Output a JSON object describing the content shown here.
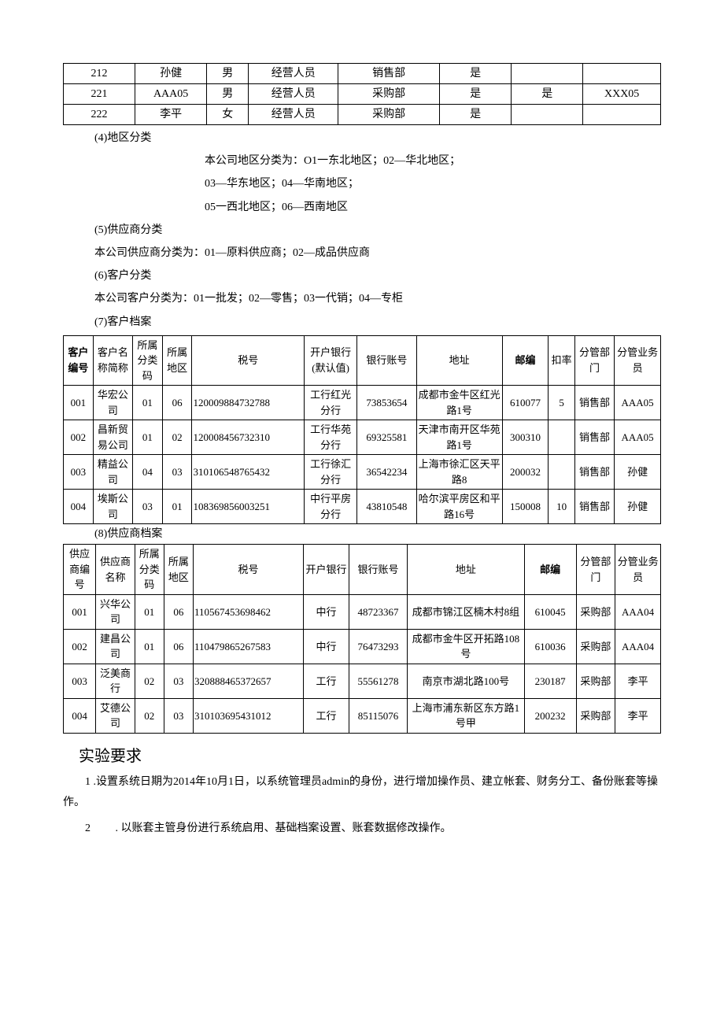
{
  "table1": {
    "rows": [
      {
        "code": "212",
        "name": "孙健",
        "gender": "男",
        "role": "经营人员",
        "dept": "销售部",
        "col6": "是",
        "col7": "",
        "col8": ""
      },
      {
        "code": "221",
        "name": "AAA05",
        "gender": "男",
        "role": "经营人员",
        "dept": "采购部",
        "col6": "是",
        "col7": "是",
        "col8": "XXX05"
      },
      {
        "code": "222",
        "name": "李平",
        "gender": "女",
        "role": "经营人员",
        "dept": "采购部",
        "col6": "是",
        "col7": "",
        "col8": ""
      }
    ]
  },
  "section4": {
    "label": "(4)地区分类",
    "lines": [
      "本公司地区分类为：O1一东北地区；02—华北地区；",
      "03—华东地区；04—华南地区；",
      "05一西北地区；06—西南地区"
    ]
  },
  "section5": {
    "label": "(5)供应商分类",
    "line": "本公司供应商分类为：01—原料供应商；02—成品供应商"
  },
  "section6": {
    "label": "(6)客户分类",
    "line": "本公司客户分类为：01一批发；02—零售；03一代销；04—专柜"
  },
  "section7": {
    "label": "(7)客户档案"
  },
  "customerTable": {
    "headers": [
      "客户编号",
      "客户名称简称",
      "所属分类码",
      "所属地区",
      "税号",
      "开户银行(默认值)",
      "银行账号",
      "地址",
      "邮编",
      "扣率",
      "分管部门",
      "分管业务员"
    ],
    "rows": [
      {
        "id": "001",
        "name": "华宏公司",
        "cls": "01",
        "region": "06",
        "tax": "120009884732788",
        "bank": "工行红光分行",
        "acct": "73853654",
        "addr": "成都市金牛区红光路1号",
        "zip": "610077",
        "rate": "5",
        "dept": "销售部",
        "staff": "AAA05"
      },
      {
        "id": "002",
        "name": "昌新贸易公司",
        "cls": "01",
        "region": "02",
        "tax": "120008456732310",
        "bank": "工行华苑分行",
        "acct": "69325581",
        "addr": "天津市南开区华苑路1号",
        "zip": "300310",
        "rate": "",
        "dept": "销售部",
        "staff": "AAA05"
      },
      {
        "id": "003",
        "name": "精益公司",
        "cls": "04",
        "region": "03",
        "tax": "310106548765432",
        "bank": "工行徐汇分行",
        "acct": "36542234",
        "addr": "上海市徐汇区天平路8",
        "zip": "200032",
        "rate": "",
        "dept": "销售部",
        "staff": "孙健"
      },
      {
        "id": "004",
        "name": "埃斯公司",
        "cls": "03",
        "region": "01",
        "tax": "108369856003251",
        "bank": "中行平房分行",
        "acct": "43810548",
        "addr": "哈尔滨平房区和平路16号",
        "zip": "150008",
        "rate": "10",
        "dept": "销售部",
        "staff": "孙健"
      }
    ]
  },
  "section8": {
    "label": "(8)供应商档案"
  },
  "supplierTable": {
    "headers": [
      "供应商编号",
      "供应商名称",
      "所属分类码",
      "所属地区",
      "税号",
      "开户银行",
      "银行账号",
      "地址",
      "邮编",
      "分管部门",
      "分管业务员"
    ],
    "rows": [
      {
        "id": "001",
        "name": "兴华公司",
        "cls": "01",
        "region": "06",
        "tax": "110567453698462",
        "bank": "中行",
        "acct": "48723367",
        "addr": "成都市锦江区楠木村8组",
        "zip": "610045",
        "dept": "采购部",
        "staff": "AAA04"
      },
      {
        "id": "002",
        "name": "建昌公司",
        "cls": "01",
        "region": "06",
        "tax": "110479865267583",
        "bank": "中行",
        "acct": "76473293",
        "addr": "成都市金牛区开拓路108号",
        "zip": "610036",
        "dept": "采购部",
        "staff": "AAA04"
      },
      {
        "id": "003",
        "name": "泛美商行",
        "cls": "02",
        "region": "03",
        "tax": "320888465372657",
        "bank": "工行",
        "acct": "55561278",
        "addr": "南京市湖北路100号",
        "zip": "230187",
        "dept": "采购部",
        "staff": "李平"
      },
      {
        "id": "004",
        "name": "艾德公司",
        "cls": "02",
        "region": "03",
        "tax": "310103695431012",
        "bank": "工行",
        "acct": "85115076",
        "addr": "上海市浦东新区东方路1号甲",
        "zip": "200232",
        "dept": "采购部",
        "staff": "李平"
      }
    ]
  },
  "requirements": {
    "heading": "实验要求",
    "items": [
      "1 .设置系统日期为2014年10月1日，以系统管理员admin的身份，进行增加操作员、建立帐套、财务分工、备份账套等操作。",
      "2　　 . 以账套主管身份进行系统启用、基础档案设置、账套数据修改操作。"
    ]
  }
}
